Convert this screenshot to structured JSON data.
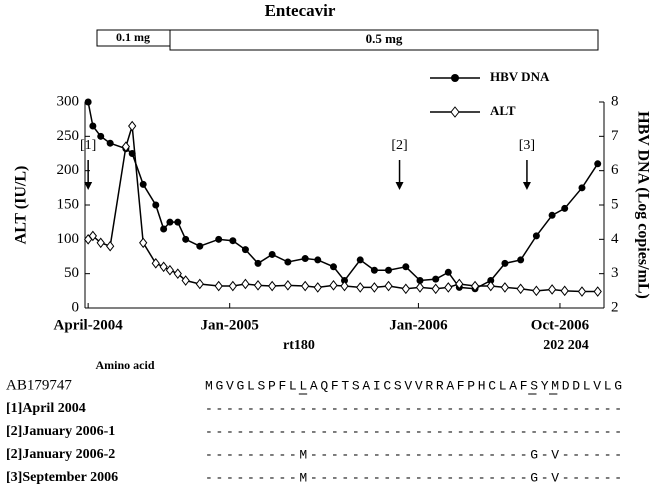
{
  "chart_data": {
    "type": "line",
    "treatment": {
      "title": "Entecavir",
      "segments": [
        "0.1 mg",
        "0.5 mg"
      ]
    },
    "ylabel": "ALT (IU/L)",
    "y2label": "HBV DNA (Log copies/mL)",
    "x": [
      0,
      0.3,
      0.8,
      1.4,
      2.4,
      2.8,
      3.5,
      4.3,
      4.8,
      5.2,
      5.7,
      6.2,
      7.1,
      8.3,
      9.2,
      10.0,
      10.8,
      11.7,
      12.7,
      13.8,
      14.6,
      15.6,
      16.3,
      17.3,
      18.2,
      19.1,
      20.2,
      21.1,
      22.1,
      22.9,
      23.6,
      24.6,
      25.6,
      26.5,
      27.5,
      28.5,
      29.5,
      30.3,
      31.4,
      32.4
    ],
    "series": [
      {
        "name": "HBV DNA",
        "color": "#000000",
        "marker": "circle",
        "axis": "y2",
        "values": [
          8.0,
          7.3,
          7.0,
          6.8,
          6.64,
          6.5,
          5.6,
          5.0,
          4.3,
          4.5,
          4.5,
          4.0,
          3.8,
          4.0,
          3.96,
          3.7,
          3.3,
          3.56,
          3.34,
          3.44,
          3.4,
          3.2,
          2.8,
          3.4,
          3.1,
          3.1,
          3.2,
          2.8,
          2.84,
          3.04,
          2.6,
          2.56,
          2.8,
          3.3,
          3.4,
          4.1,
          4.7,
          4.9,
          5.5,
          6.2
        ]
      },
      {
        "name": "ALT",
        "color": "#000000",
        "marker": "diamond",
        "values": [
          100,
          105,
          95,
          90,
          235,
          265,
          95,
          65,
          60,
          55,
          50,
          40,
          35,
          32,
          32,
          35,
          33,
          32,
          33,
          32,
          30,
          33,
          32,
          30,
          30,
          32,
          28,
          30,
          28,
          30,
          35,
          32,
          32,
          30,
          28,
          25,
          27,
          25,
          24,
          24
        ]
      }
    ],
    "xlim": [
      -0.2,
      32.8
    ],
    "xticks": [
      {
        "value": 0,
        "label": "April-2004"
      },
      {
        "value": 9,
        "label": "Jan-2005"
      },
      {
        "value": 21,
        "label": "Jan-2006"
      },
      {
        "value": 30,
        "label": "Oct-2006"
      }
    ],
    "ylim": [
      0,
      300
    ],
    "yticks": [
      0,
      50,
      100,
      150,
      200,
      250,
      300
    ],
    "y2lim": [
      2,
      8
    ],
    "y2ticks": [
      2,
      3,
      4,
      5,
      6,
      7,
      8
    ],
    "annotations": [
      {
        "text": "[1]",
        "x": 0
      },
      {
        "text": "[2]",
        "x": 19.8
      },
      {
        "text": "[3]",
        "x": 27.9
      }
    ],
    "legend": "upper right"
  },
  "alignment": {
    "header": "Amino acid",
    "positions": [
      "rt180",
      "202 204"
    ],
    "underlined": [
      9,
      31,
      33
    ],
    "rows": [
      {
        "name": "AB179747",
        "sequence": "MGVGLSPFLLAQFTSAICSVVRRAFPHCLAFSYMDDLVLG"
      },
      {
        "name": "[1]April 2004",
        "sequence": "----------------------------------------"
      },
      {
        "name": "[2]January 2006-1",
        "sequence": "----------------------------------------"
      },
      {
        "name": "[2]January 2006-2",
        "sequence": "---------M---------------------G-V------"
      },
      {
        "name": "[3]September 2006",
        "sequence": "---------M---------------------G-V------"
      }
    ]
  }
}
